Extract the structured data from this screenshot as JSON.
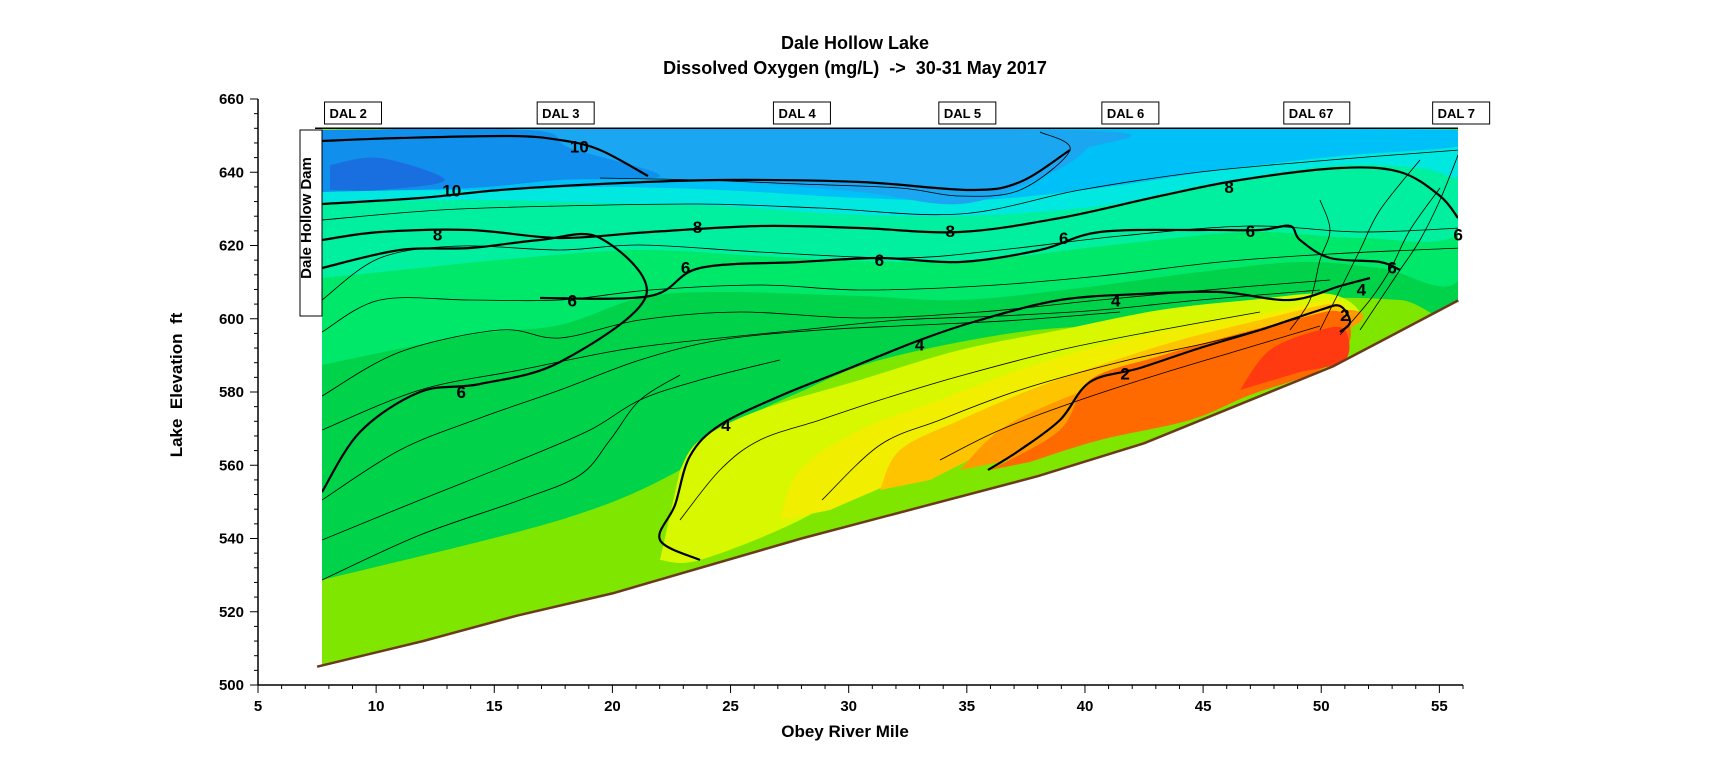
{
  "chart_data": {
    "type": "contour",
    "title": "Dale Hollow Lake",
    "subtitle": "Dissolved Oxygen (mg/L)  ->  30-31 May 2017",
    "xlabel": "Obey River Mile",
    "ylabel": "Lake  Elevation  ft",
    "xlim": [
      5,
      56
    ],
    "ylim": [
      500,
      660
    ],
    "x_ticks": [
      "5",
      "10",
      "15",
      "20",
      "25",
      "30",
      "35",
      "40",
      "45",
      "50",
      "55"
    ],
    "y_ticks": [
      "500",
      "520",
      "540",
      "560",
      "580",
      "600",
      "620",
      "640",
      "660"
    ],
    "surface_elevation": 652,
    "dam_label": "Dale Hollow Dam",
    "stations": [
      {
        "name": "DAL 2",
        "mile": 7.9
      },
      {
        "name": "DAL 3",
        "mile": 16.9
      },
      {
        "name": "DAL 4",
        "mile": 26.9
      },
      {
        "name": "DAL 5",
        "mile": 33.9
      },
      {
        "name": "DAL 6",
        "mile": 40.8
      },
      {
        "name": "DAL 67",
        "mile": 48.5
      },
      {
        "name": "DAL 7",
        "mile": 54.8
      }
    ],
    "bottom_profile": [
      {
        "x": 7.5,
        "y": 505
      },
      {
        "x": 12,
        "y": 512
      },
      {
        "x": 16,
        "y": 519
      },
      {
        "x": 20,
        "y": 525
      },
      {
        "x": 28,
        "y": 540
      },
      {
        "x": 38,
        "y": 557
      },
      {
        "x": 42.5,
        "y": 566
      },
      {
        "x": 50.5,
        "y": 587
      },
      {
        "x": 55.8,
        "y": 605
      }
    ],
    "contour_levels": [
      {
        "value": "10",
        "labels": [
          {
            "x": 13.2,
            "y": 635
          },
          {
            "x": 18.6,
            "y": 647
          }
        ]
      },
      {
        "value": "8",
        "labels": [
          {
            "x": 12.6,
            "y": 623
          },
          {
            "x": 23.6,
            "y": 625
          },
          {
            "x": 34.3,
            "y": 624
          },
          {
            "x": 46.1,
            "y": 636
          }
        ]
      },
      {
        "value": "6",
        "labels": [
          {
            "x": 13.6,
            "y": 580
          },
          {
            "x": 18.3,
            "y": 605
          },
          {
            "x": 23.1,
            "y": 614
          },
          {
            "x": 31.3,
            "y": 616
          },
          {
            "x": 39.1,
            "y": 622
          },
          {
            "x": 47,
            "y": 624
          },
          {
            "x": 53,
            "y": 614
          },
          {
            "x": 55.8,
            "y": 623
          }
        ]
      },
      {
        "value": "4",
        "labels": [
          {
            "x": 24.8,
            "y": 571
          },
          {
            "x": 33,
            "y": 593
          },
          {
            "x": 41.3,
            "y": 605
          },
          {
            "x": 51.7,
            "y": 608
          }
        ]
      },
      {
        "value": "2",
        "labels": [
          {
            "x": 41.7,
            "y": 585
          },
          {
            "x": 51,
            "y": 601
          }
        ]
      }
    ],
    "grid": false,
    "legend": "none"
  }
}
